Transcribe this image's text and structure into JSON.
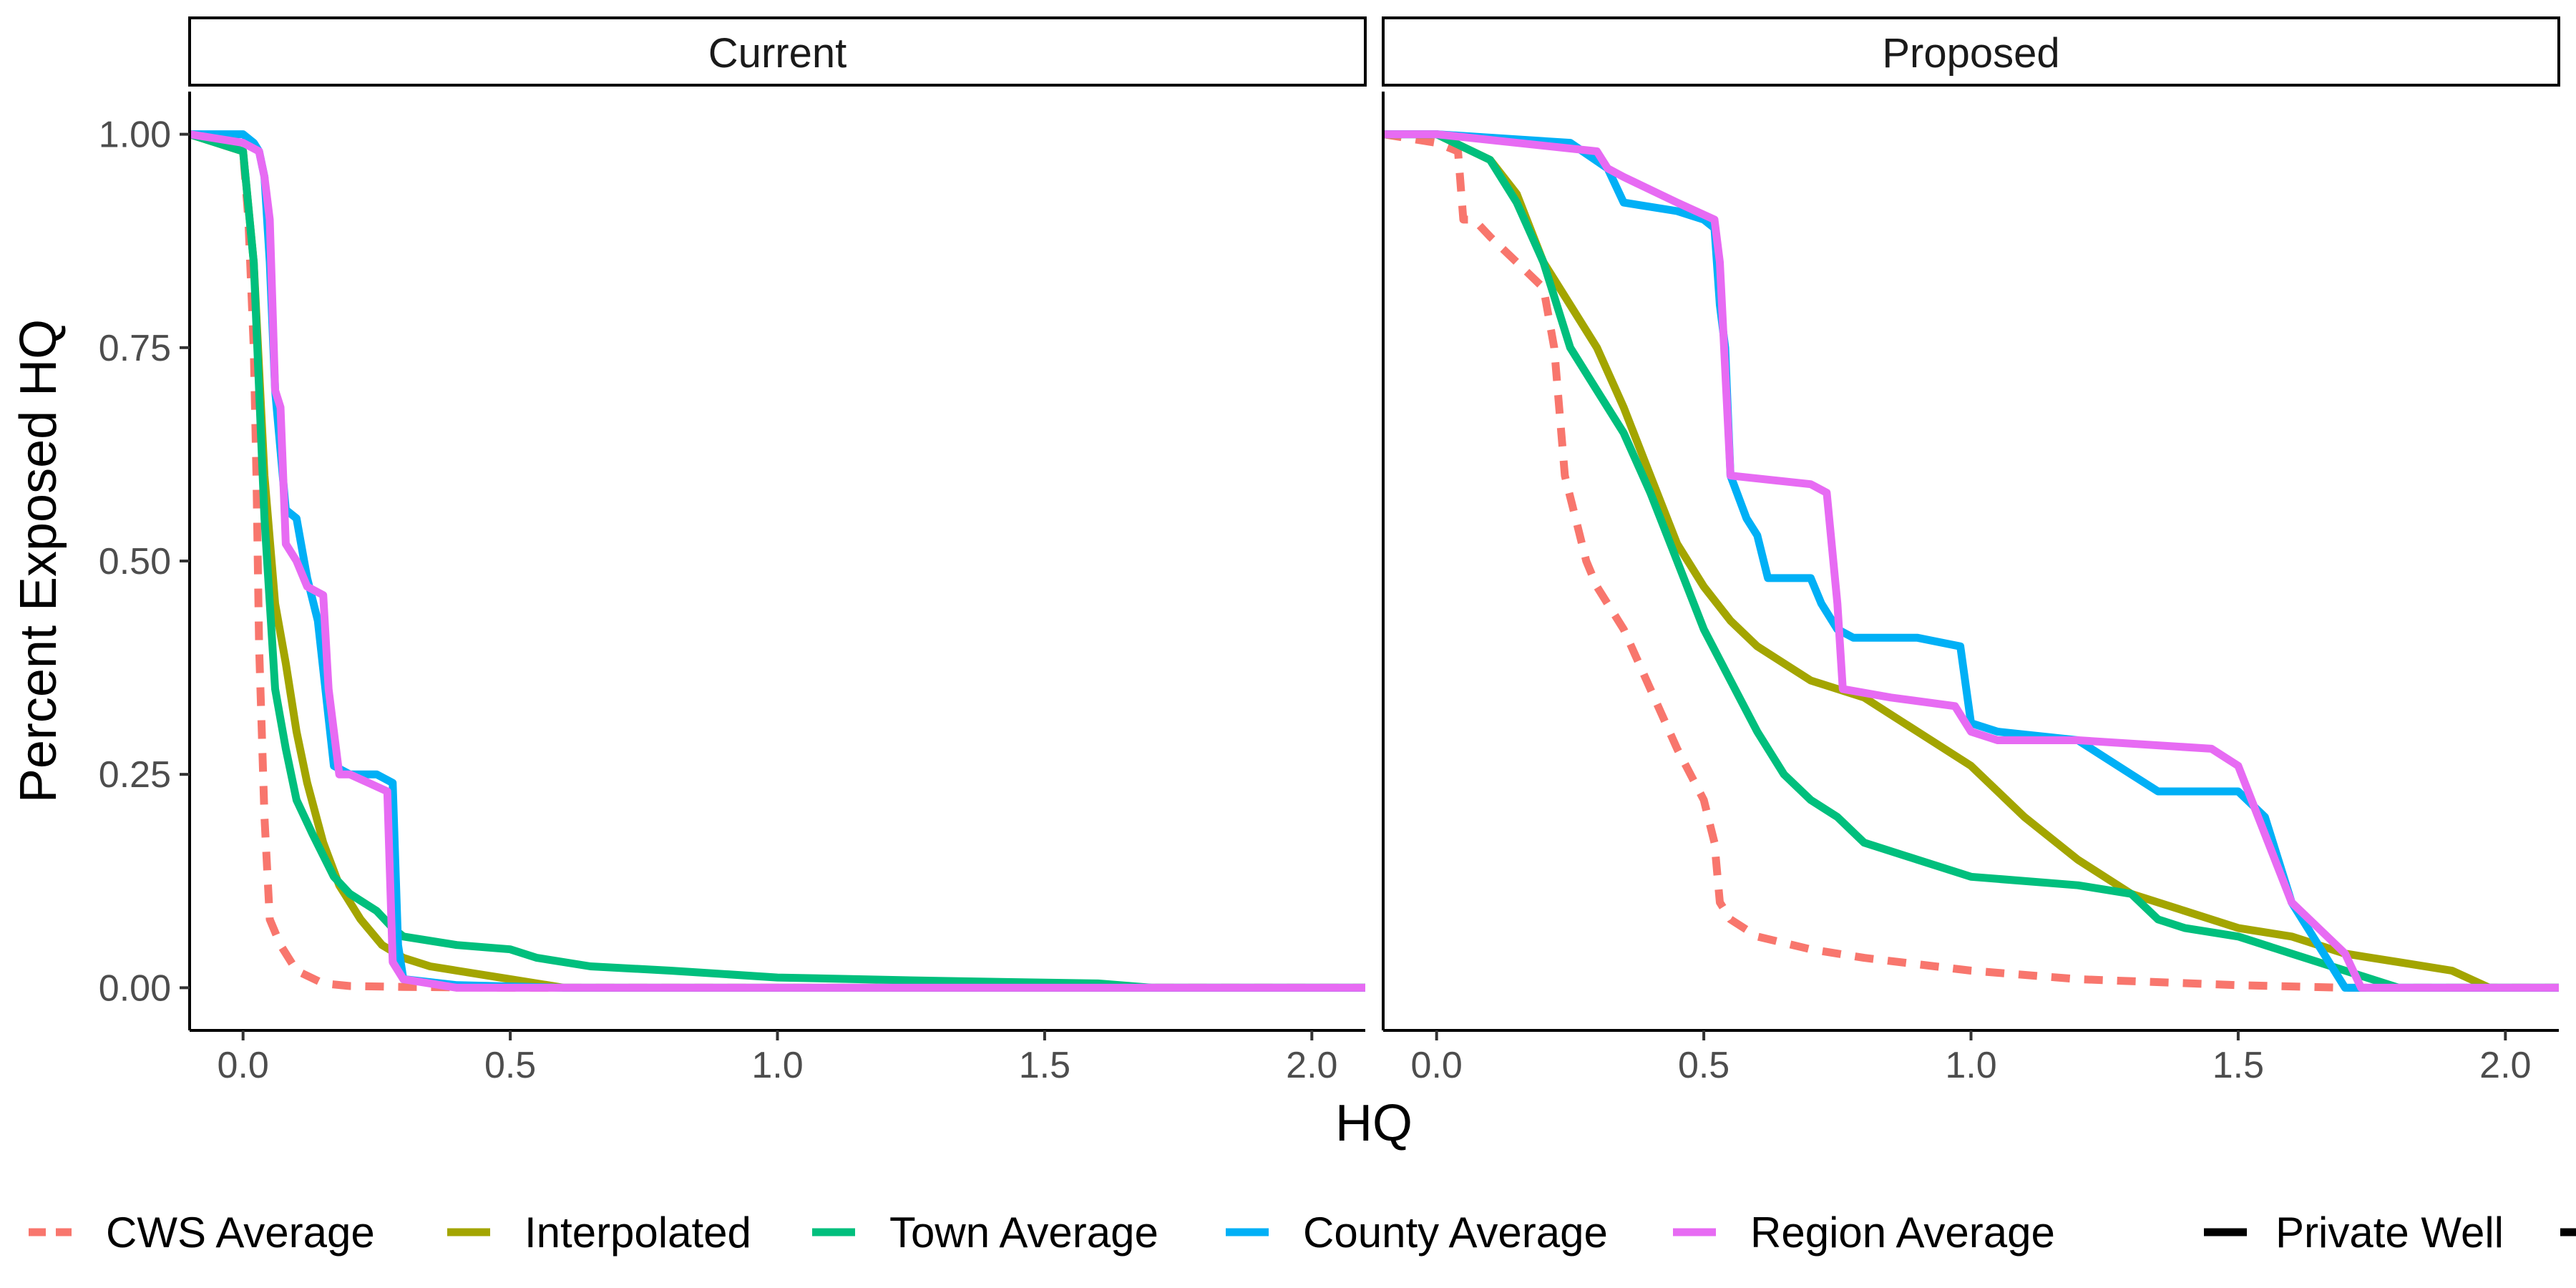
{
  "chart_data": {
    "type": "line",
    "xlabel": "HQ",
    "ylabel": "Percent Exposed HQ",
    "xlim": [
      -0.1,
      2.1
    ],
    "ylim": [
      -0.05,
      1.05
    ],
    "x_ticks": [
      0.0,
      0.5,
      1.0,
      1.5,
      2.0
    ],
    "x_tick_labels": [
      "0.0",
      "0.5",
      "1.0",
      "1.5",
      "2.0"
    ],
    "y_ticks": [
      0.0,
      0.25,
      0.5,
      0.75,
      1.0
    ],
    "y_tick_labels": [
      "0.00",
      "0.25",
      "0.50",
      "0.75",
      "1.00"
    ],
    "grid": false,
    "legend_position": "bottom",
    "legend": {
      "color_entries": [
        {
          "name": "CWS Average",
          "color": "#F8766D",
          "dash": "dashed"
        },
        {
          "name": "Interpolated",
          "color": "#A3A500",
          "dash": "solid"
        },
        {
          "name": "Town Average",
          "color": "#00BF7D",
          "dash": "solid"
        },
        {
          "name": "County Average",
          "color": "#00B0F6",
          "dash": "solid"
        },
        {
          "name": "Region Average",
          "color": "#E76BF3",
          "dash": "solid"
        }
      ],
      "linetype_entries": [
        {
          "name": "Private Well",
          "dash": "solid"
        },
        {
          "name": "",
          "dash": "dashed"
        }
      ]
    },
    "panels": [
      {
        "title": "Current",
        "series": [
          {
            "name": "CWS Average",
            "color": "#F8766D",
            "dash": "dashed",
            "x": [
              -0.1,
              0.0,
              0.01,
              0.02,
              0.025,
              0.03,
              0.04,
              0.05,
              0.07,
              0.1,
              0.15,
              0.2,
              0.3,
              0.5,
              2.1
            ],
            "y": [
              1.0,
              0.98,
              0.9,
              0.75,
              0.6,
              0.4,
              0.2,
              0.08,
              0.05,
              0.02,
              0.005,
              0.002,
              0.001,
              0.0,
              0.0
            ]
          },
          {
            "name": "Interpolated",
            "color": "#A3A500",
            "dash": "solid",
            "x": [
              -0.1,
              0.0,
              0.02,
              0.04,
              0.06,
              0.08,
              0.1,
              0.12,
              0.15,
              0.18,
              0.22,
              0.26,
              0.3,
              0.35,
              0.4,
              0.5,
              0.6,
              1.0,
              2.1
            ],
            "y": [
              1.0,
              0.98,
              0.85,
              0.6,
              0.45,
              0.38,
              0.3,
              0.24,
              0.17,
              0.12,
              0.08,
              0.05,
              0.035,
              0.025,
              0.02,
              0.01,
              0.0,
              0.0,
              0.0
            ]
          },
          {
            "name": "Town Average",
            "color": "#00BF7D",
            "dash": "solid",
            "x": [
              -0.1,
              0.0,
              0.02,
              0.04,
              0.06,
              0.08,
              0.1,
              0.13,
              0.17,
              0.2,
              0.25,
              0.28,
              0.3,
              0.4,
              0.5,
              0.55,
              0.65,
              0.8,
              1.0,
              1.3,
              1.6,
              1.7,
              2.1
            ],
            "y": [
              1.0,
              0.98,
              0.85,
              0.55,
              0.35,
              0.28,
              0.22,
              0.18,
              0.13,
              0.11,
              0.09,
              0.07,
              0.06,
              0.05,
              0.045,
              0.035,
              0.025,
              0.02,
              0.012,
              0.008,
              0.005,
              0.0,
              0.0
            ]
          },
          {
            "name": "County Average",
            "color": "#00B0F6",
            "dash": "solid",
            "x": [
              -0.1,
              0.0,
              0.02,
              0.03,
              0.04,
              0.05,
              0.06,
              0.08,
              0.1,
              0.12,
              0.14,
              0.17,
              0.2,
              0.25,
              0.28,
              0.29,
              0.3,
              0.4,
              0.6,
              2.1
            ],
            "y": [
              1.0,
              1.0,
              0.99,
              0.98,
              0.95,
              0.85,
              0.7,
              0.56,
              0.55,
              0.48,
              0.43,
              0.26,
              0.25,
              0.25,
              0.24,
              0.05,
              0.01,
              0.003,
              0.0,
              0.0
            ]
          },
          {
            "name": "Region Average",
            "color": "#E76BF3",
            "dash": "solid",
            "x": [
              -0.1,
              0.0,
              0.03,
              0.04,
              0.05,
              0.06,
              0.07,
              0.08,
              0.1,
              0.12,
              0.15,
              0.16,
              0.18,
              0.2,
              0.27,
              0.28,
              0.3,
              0.35,
              0.4,
              0.6,
              2.1
            ],
            "y": [
              1.0,
              0.99,
              0.98,
              0.95,
              0.9,
              0.7,
              0.68,
              0.52,
              0.5,
              0.47,
              0.46,
              0.35,
              0.25,
              0.25,
              0.23,
              0.03,
              0.01,
              0.005,
              0.0,
              0.0,
              0.0
            ]
          }
        ]
      },
      {
        "title": "Proposed",
        "series": [
          {
            "name": "CWS Average",
            "color": "#F8766D",
            "dash": "dashed",
            "x": [
              -0.1,
              0.0,
              0.04,
              0.05,
              0.07,
              0.1,
              0.15,
              0.2,
              0.22,
              0.24,
              0.26,
              0.28,
              0.3,
              0.35,
              0.4,
              0.45,
              0.5,
              0.52,
              0.53,
              0.55,
              0.6,
              0.7,
              0.8,
              1.0,
              1.2,
              1.5,
              1.7,
              2.1
            ],
            "y": [
              1.0,
              0.99,
              0.98,
              0.9,
              0.9,
              0.88,
              0.85,
              0.82,
              0.75,
              0.6,
              0.55,
              0.5,
              0.47,
              0.42,
              0.35,
              0.28,
              0.22,
              0.17,
              0.1,
              0.08,
              0.06,
              0.045,
              0.035,
              0.02,
              0.01,
              0.003,
              0.0,
              0.0
            ]
          },
          {
            "name": "Interpolated",
            "color": "#A3A500",
            "dash": "solid",
            "x": [
              -0.1,
              0.0,
              0.1,
              0.15,
              0.2,
              0.25,
              0.3,
              0.35,
              0.4,
              0.45,
              0.5,
              0.55,
              0.6,
              0.65,
              0.7,
              0.8,
              0.9,
              1.0,
              1.1,
              1.2,
              1.3,
              1.4,
              1.5,
              1.6,
              1.7,
              1.8,
              1.9,
              1.97,
              2.1
            ],
            "y": [
              1.0,
              1.0,
              0.97,
              0.93,
              0.85,
              0.8,
              0.75,
              0.68,
              0.6,
              0.52,
              0.47,
              0.43,
              0.4,
              0.38,
              0.36,
              0.34,
              0.3,
              0.26,
              0.2,
              0.15,
              0.11,
              0.09,
              0.07,
              0.06,
              0.04,
              0.03,
              0.02,
              0.0,
              0.0
            ]
          },
          {
            "name": "Town Average",
            "color": "#00BF7D",
            "dash": "solid",
            "x": [
              -0.1,
              0.0,
              0.1,
              0.15,
              0.2,
              0.25,
              0.3,
              0.35,
              0.4,
              0.45,
              0.5,
              0.55,
              0.6,
              0.65,
              0.7,
              0.75,
              0.8,
              0.9,
              1.0,
              1.2,
              1.3,
              1.35,
              1.4,
              1.5,
              1.6,
              1.7,
              1.8,
              2.1
            ],
            "y": [
              1.0,
              1.0,
              0.97,
              0.92,
              0.85,
              0.75,
              0.7,
              0.65,
              0.58,
              0.5,
              0.42,
              0.36,
              0.3,
              0.25,
              0.22,
              0.2,
              0.17,
              0.15,
              0.13,
              0.12,
              0.11,
              0.08,
              0.07,
              0.06,
              0.04,
              0.02,
              0.0,
              0.0
            ]
          },
          {
            "name": "County Average",
            "color": "#00B0F6",
            "dash": "solid",
            "x": [
              -0.1,
              0.0,
              0.25,
              0.32,
              0.35,
              0.45,
              0.5,
              0.52,
              0.53,
              0.54,
              0.55,
              0.58,
              0.6,
              0.62,
              0.65,
              0.7,
              0.72,
              0.75,
              0.78,
              0.9,
              0.98,
              1.0,
              1.05,
              1.2,
              1.3,
              1.35,
              1.5,
              1.55,
              1.6,
              1.7,
              2.1
            ],
            "y": [
              1.0,
              1.0,
              0.99,
              0.96,
              0.92,
              0.91,
              0.9,
              0.89,
              0.8,
              0.75,
              0.6,
              0.55,
              0.53,
              0.48,
              0.48,
              0.48,
              0.45,
              0.42,
              0.41,
              0.41,
              0.4,
              0.31,
              0.3,
              0.29,
              0.25,
              0.23,
              0.23,
              0.2,
              0.1,
              0.0,
              0.0
            ]
          },
          {
            "name": "Region Average",
            "color": "#E76BF3",
            "dash": "solid",
            "x": [
              -0.1,
              0.0,
              0.3,
              0.32,
              0.35,
              0.45,
              0.52,
              0.53,
              0.55,
              0.7,
              0.73,
              0.75,
              0.76,
              0.85,
              0.97,
              1.0,
              1.05,
              1.2,
              1.45,
              1.5,
              1.6,
              1.7,
              1.73,
              2.1
            ],
            "y": [
              1.0,
              1.0,
              0.98,
              0.96,
              0.95,
              0.92,
              0.9,
              0.85,
              0.6,
              0.59,
              0.58,
              0.45,
              0.35,
              0.34,
              0.33,
              0.3,
              0.29,
              0.29,
              0.28,
              0.26,
              0.1,
              0.04,
              0.0,
              0.0
            ]
          }
        ]
      }
    ]
  }
}
